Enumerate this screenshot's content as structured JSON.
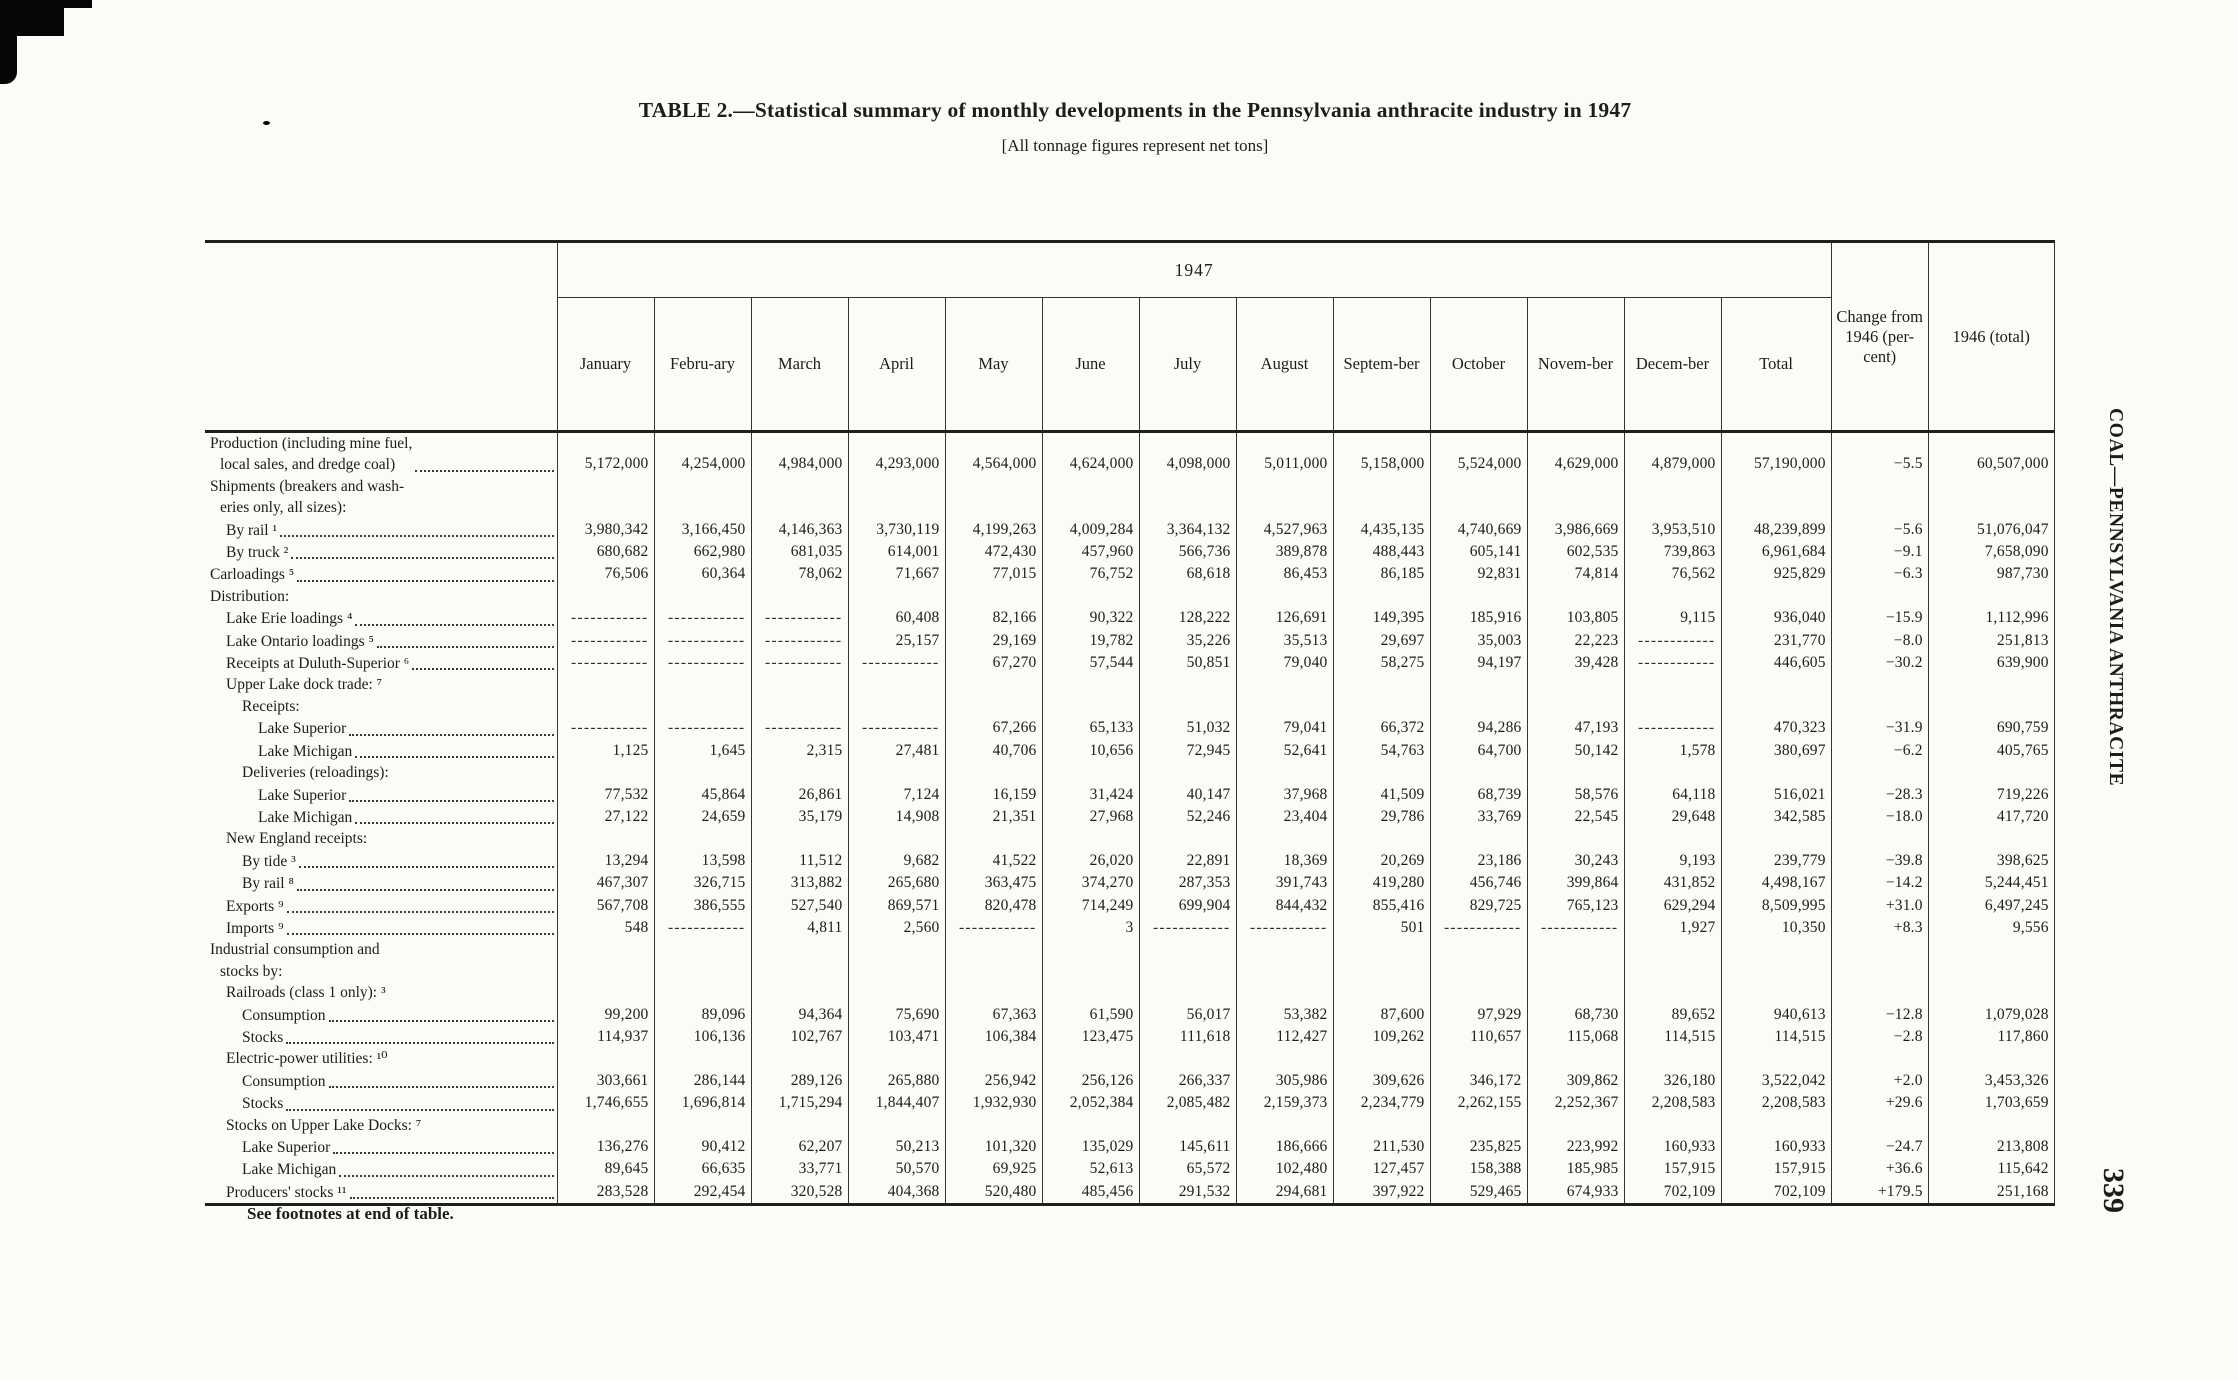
{
  "page": {
    "title": "TABLE 2.—Statistical summary of monthly developments in the Pennsylvania anthracite industry in 1947",
    "subtitle": "[All tonnage figures represent net tons]",
    "year_span_header": "1947",
    "footer_note": "See footnotes at end of table.",
    "margin_text": "COAL—PENNSYLVANIA ANTHRACITE",
    "page_number": "339",
    "blank_marker": "------------"
  },
  "table": {
    "columns": [
      "January",
      "Febru-ary",
      "March",
      "April",
      "May",
      "June",
      "July",
      "August",
      "Septem-ber",
      "October",
      "Novem-ber",
      "Decem-ber",
      "Total",
      "Change from 1946 (per-cent)",
      "1946 (total)"
    ],
    "rows": [
      {
        "label": "Production (including mine fuel,\nlocal sales, and dredge coal)",
        "indent": 0,
        "values": [
          "5,172,000",
          "4,254,000",
          "4,984,000",
          "4,293,000",
          "4,564,000",
          "4,624,000",
          "4,098,000",
          "5,011,000",
          "5,158,000",
          "5,524,000",
          "4,629,000",
          "4,879,000",
          "57,190,000",
          "−5.5",
          "60,507,000"
        ]
      },
      {
        "label": "Shipments (breakers and wash-\neries only, all sizes):",
        "indent": 0,
        "header": true
      },
      {
        "label": "By rail ¹",
        "indent": 1,
        "values": [
          "3,980,342",
          "3,166,450",
          "4,146,363",
          "3,730,119",
          "4,199,263",
          "4,009,284",
          "3,364,132",
          "4,527,963",
          "4,435,135",
          "4,740,669",
          "3,986,669",
          "3,953,510",
          "48,239,899",
          "−5.6",
          "51,076,047"
        ]
      },
      {
        "label": "By truck ²",
        "indent": 1,
        "values": [
          "680,682",
          "662,980",
          "681,035",
          "614,001",
          "472,430",
          "457,960",
          "566,736",
          "389,878",
          "488,443",
          "605,141",
          "602,535",
          "739,863",
          "6,961,684",
          "−9.1",
          "7,658,090"
        ]
      },
      {
        "label": "Carloadings ⁵",
        "indent": 0,
        "values": [
          "76,506",
          "60,364",
          "78,062",
          "71,667",
          "77,015",
          "76,752",
          "68,618",
          "86,453",
          "86,185",
          "92,831",
          "74,814",
          "76,562",
          "925,829",
          "−6.3",
          "987,730"
        ]
      },
      {
        "label": "Distribution:",
        "indent": 0,
        "header": true
      },
      {
        "label": "Lake Erie loadings ⁴",
        "indent": 1,
        "values": [
          null,
          null,
          null,
          "60,408",
          "82,166",
          "90,322",
          "128,222",
          "126,691",
          "149,395",
          "185,916",
          "103,805",
          "9,115",
          "936,040",
          "−15.9",
          "1,112,996"
        ]
      },
      {
        "label": "Lake Ontario loadings ⁵",
        "indent": 1,
        "values": [
          null,
          null,
          null,
          "25,157",
          "29,169",
          "19,782",
          "35,226",
          "35,513",
          "29,697",
          "35,003",
          "22,223",
          null,
          "231,770",
          "−8.0",
          "251,813"
        ]
      },
      {
        "label": "Receipts at Duluth-Superior ⁶",
        "indent": 1,
        "values": [
          null,
          null,
          null,
          null,
          "67,270",
          "57,544",
          "50,851",
          "79,040",
          "58,275",
          "94,197",
          "39,428",
          null,
          "446,605",
          "−30.2",
          "639,900"
        ]
      },
      {
        "label": "Upper Lake dock trade: ⁷",
        "indent": 1,
        "header": true
      },
      {
        "label": "Receipts:",
        "indent": 2,
        "header": true
      },
      {
        "label": "Lake Superior",
        "indent": 3,
        "values": [
          null,
          null,
          null,
          null,
          "67,266",
          "65,133",
          "51,032",
          "79,041",
          "66,372",
          "94,286",
          "47,193",
          null,
          "470,323",
          "−31.9",
          "690,759"
        ]
      },
      {
        "label": "Lake Michigan",
        "indent": 3,
        "values": [
          "1,125",
          "1,645",
          "2,315",
          "27,481",
          "40,706",
          "10,656",
          "72,945",
          "52,641",
          "54,763",
          "64,700",
          "50,142",
          "1,578",
          "380,697",
          "−6.2",
          "405,765"
        ]
      },
      {
        "label": "Deliveries (reloadings):",
        "indent": 2,
        "header": true
      },
      {
        "label": "Lake Superior",
        "indent": 3,
        "values": [
          "77,532",
          "45,864",
          "26,861",
          "7,124",
          "16,159",
          "31,424",
          "40,147",
          "37,968",
          "41,509",
          "68,739",
          "58,576",
          "64,118",
          "516,021",
          "−28.3",
          "719,226"
        ]
      },
      {
        "label": "Lake Michigan",
        "indent": 3,
        "values": [
          "27,122",
          "24,659",
          "35,179",
          "14,908",
          "21,351",
          "27,968",
          "52,246",
          "23,404",
          "29,786",
          "33,769",
          "22,545",
          "29,648",
          "342,585",
          "−18.0",
          "417,720"
        ]
      },
      {
        "label": "New England receipts:",
        "indent": 1,
        "header": true
      },
      {
        "label": "By tide ³",
        "indent": 2,
        "values": [
          "13,294",
          "13,598",
          "11,512",
          "9,682",
          "41,522",
          "26,020",
          "22,891",
          "18,369",
          "20,269",
          "23,186",
          "30,243",
          "9,193",
          "239,779",
          "−39.8",
          "398,625"
        ]
      },
      {
        "label": "By rail ⁸",
        "indent": 2,
        "values": [
          "467,307",
          "326,715",
          "313,882",
          "265,680",
          "363,475",
          "374,270",
          "287,353",
          "391,743",
          "419,280",
          "456,746",
          "399,864",
          "431,852",
          "4,498,167",
          "−14.2",
          "5,244,451"
        ]
      },
      {
        "label": "Exports ⁹",
        "indent": 1,
        "values": [
          "567,708",
          "386,555",
          "527,540",
          "869,571",
          "820,478",
          "714,249",
          "699,904",
          "844,432",
          "855,416",
          "829,725",
          "765,123",
          "629,294",
          "8,509,995",
          "+31.0",
          "6,497,245"
        ]
      },
      {
        "label": "Imports ⁹",
        "indent": 1,
        "values": [
          "548",
          null,
          "4,811",
          "2,560",
          null,
          "3",
          null,
          null,
          "501",
          null,
          null,
          "1,927",
          "10,350",
          "+8.3",
          "9,556"
        ]
      },
      {
        "label": "Industrial consumption and\nstocks by:",
        "indent": 0,
        "header": true
      },
      {
        "label": "Railroads (class 1 only): ³",
        "indent": 1,
        "header": true
      },
      {
        "label": "Consumption",
        "indent": 2,
        "values": [
          "99,200",
          "89,096",
          "94,364",
          "75,690",
          "67,363",
          "61,590",
          "56,017",
          "53,382",
          "87,600",
          "97,929",
          "68,730",
          "89,652",
          "940,613",
          "−12.8",
          "1,079,028"
        ]
      },
      {
        "label": "Stocks",
        "indent": 2,
        "values": [
          "114,937",
          "106,136",
          "102,767",
          "103,471",
          "106,384",
          "123,475",
          "111,618",
          "112,427",
          "109,262",
          "110,657",
          "115,068",
          "114,515",
          "114,515",
          "−2.8",
          "117,860"
        ]
      },
      {
        "label": "Electric-power utilities: ¹⁰",
        "indent": 1,
        "header": true
      },
      {
        "label": "Consumption",
        "indent": 2,
        "values": [
          "303,661",
          "286,144",
          "289,126",
          "265,880",
          "256,942",
          "256,126",
          "266,337",
          "305,986",
          "309,626",
          "346,172",
          "309,862",
          "326,180",
          "3,522,042",
          "+2.0",
          "3,453,326"
        ]
      },
      {
        "label": "Stocks",
        "indent": 2,
        "values": [
          "1,746,655",
          "1,696,814",
          "1,715,294",
          "1,844,407",
          "1,932,930",
          "2,052,384",
          "2,085,482",
          "2,159,373",
          "2,234,779",
          "2,262,155",
          "2,252,367",
          "2,208,583",
          "2,208,583",
          "+29.6",
          "1,703,659"
        ]
      },
      {
        "label": "Stocks on Upper Lake Docks: ⁷",
        "indent": 1,
        "header": true
      },
      {
        "label": "Lake Superior",
        "indent": 2,
        "values": [
          "136,276",
          "90,412",
          "62,207",
          "50,213",
          "101,320",
          "135,029",
          "145,611",
          "186,666",
          "211,530",
          "235,825",
          "223,992",
          "160,933",
          "160,933",
          "−24.7",
          "213,808"
        ]
      },
      {
        "label": "Lake Michigan",
        "indent": 2,
        "values": [
          "89,645",
          "66,635",
          "33,771",
          "50,570",
          "69,925",
          "52,613",
          "65,572",
          "102,480",
          "127,457",
          "158,388",
          "185,985",
          "157,915",
          "157,915",
          "+36.6",
          "115,642"
        ]
      },
      {
        "label": "Producers' stocks ¹¹",
        "indent": 1,
        "values": [
          "283,528",
          "292,454",
          "320,528",
          "404,368",
          "520,480",
          "485,456",
          "291,532",
          "294,681",
          "397,922",
          "529,465",
          "674,933",
          "702,109",
          "702,109",
          "+179.5",
          "251,168"
        ]
      }
    ]
  }
}
